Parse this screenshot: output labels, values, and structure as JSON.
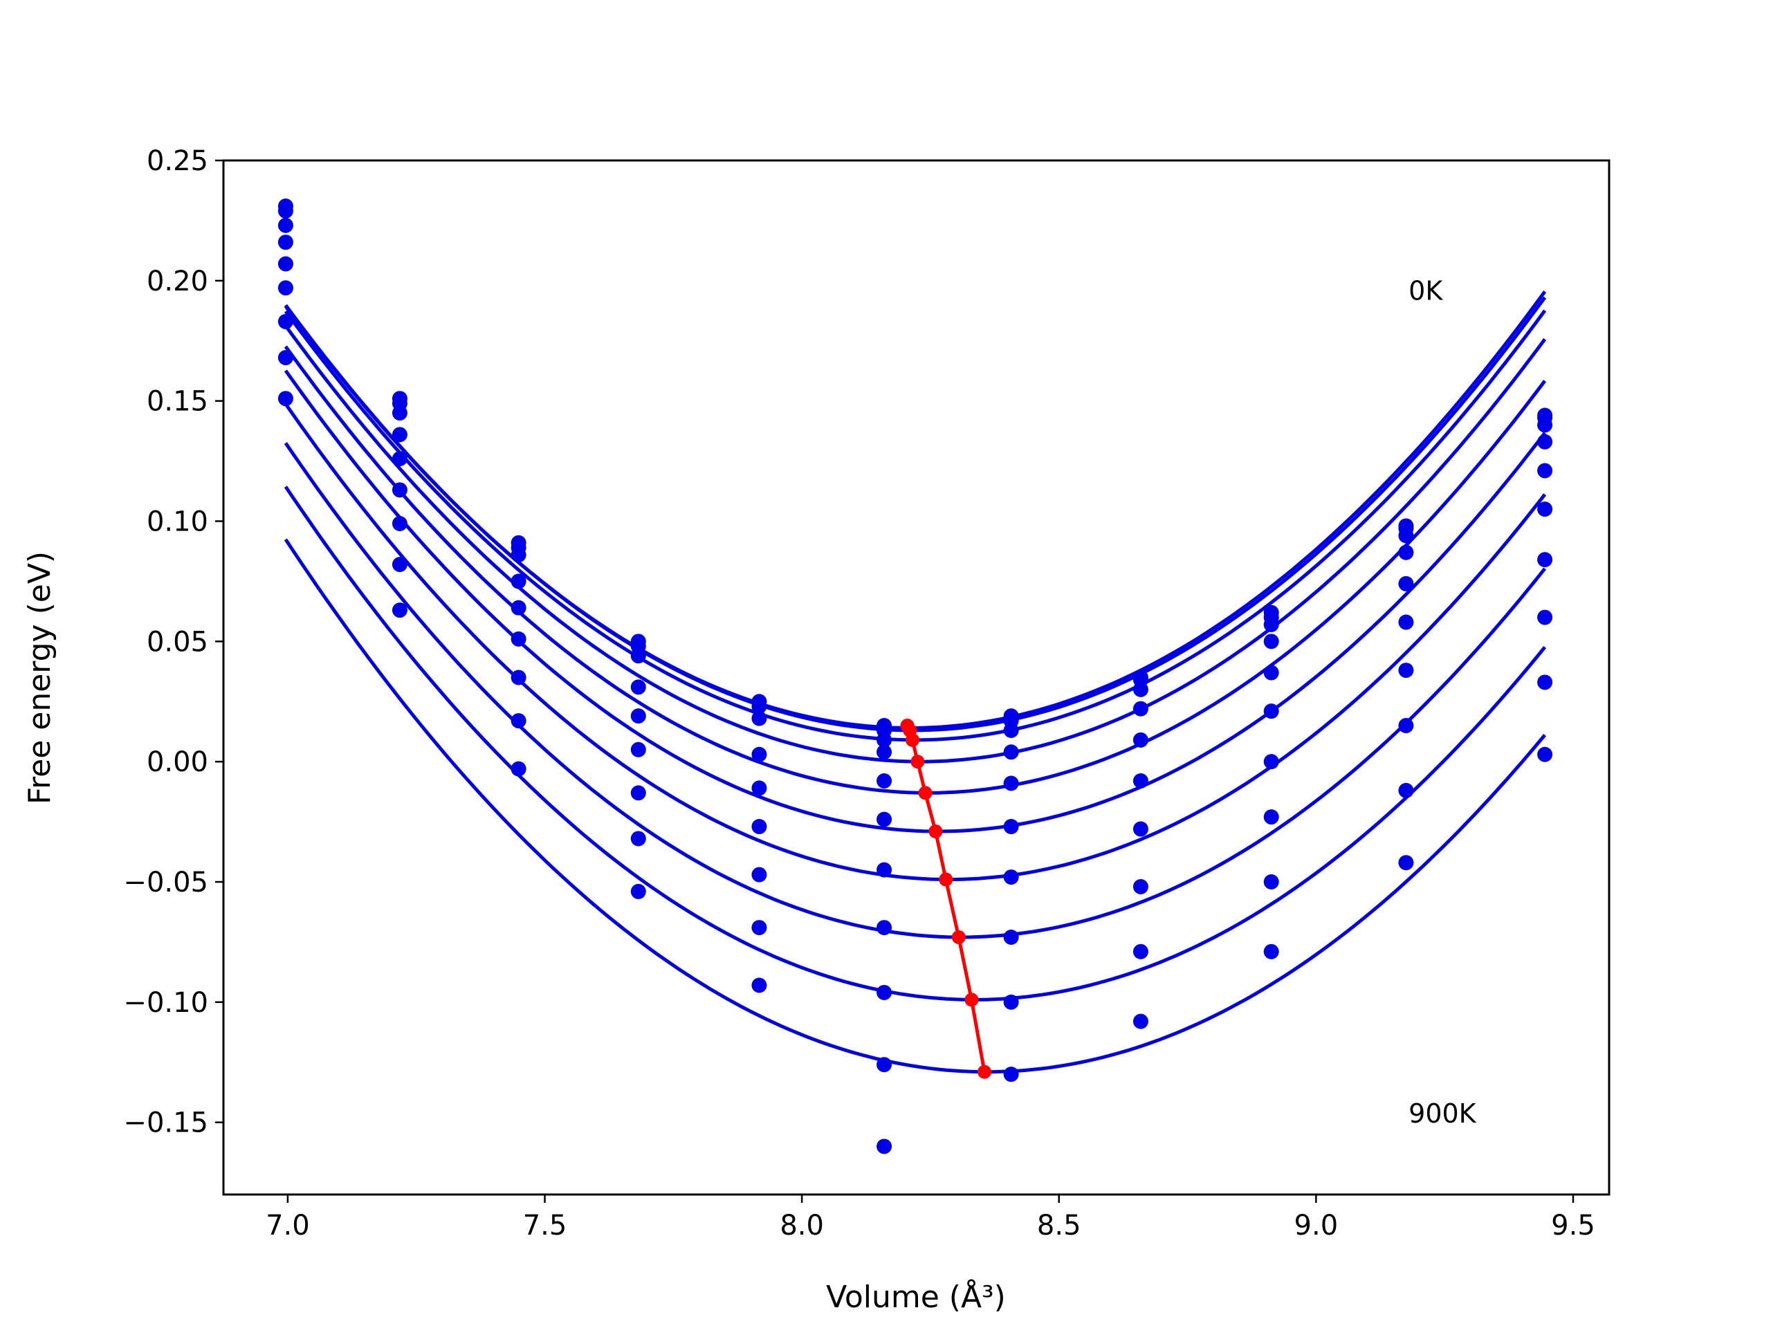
{
  "chart_data": {
    "type": "scatter",
    "xlabel": "Volume (Å³)",
    "ylabel": "Free energy (eV)",
    "xlim": [
      6.875,
      9.57
    ],
    "ylim": [
      -0.18,
      0.25
    ],
    "grid": false,
    "xticks": [
      "7.0",
      "7.5",
      "8.0",
      "8.5",
      "9.0",
      "9.5"
    ],
    "xtick_values": [
      7.0,
      7.5,
      8.0,
      8.5,
      9.0,
      9.5
    ],
    "yticks": [
      "0.25",
      "0.20",
      "0.15",
      "0.10",
      "0.05",
      "0.00",
      "−0.05",
      "−0.10",
      "−0.15"
    ],
    "ytick_values": [
      0.25,
      0.2,
      0.15,
      0.1,
      0.05,
      0.0,
      -0.05,
      -0.1,
      -0.15
    ],
    "annotations": [
      {
        "text": "0K",
        "x": 9.18,
        "y": 0.196
      },
      {
        "text": "900K",
        "x": 9.18,
        "y": -0.146
      }
    ],
    "series_color": "#0000e6",
    "minimum_color": "#ff0000",
    "volumes": [
      6.996,
      7.218,
      7.449,
      7.682,
      7.917,
      8.16,
      8.407,
      8.659,
      8.913,
      9.175,
      9.445
    ],
    "series": [
      {
        "points": [
          0.231,
          0.151,
          0.091,
          0.05,
          0.025,
          0.015,
          0.019,
          0.035,
          0.062,
          0.098,
          0.144
        ],
        "fit": {
          "a": 0.119,
          "vmin": 8.21,
          "emin": 0.014
        }
      },
      {
        "points": [
          0.229,
          0.149,
          0.089,
          0.048,
          0.023,
          0.013,
          0.017,
          0.034,
          0.06,
          0.097,
          0.143
        ],
        "fit": {
          "a": 0.119,
          "vmin": 8.215,
          "emin": 0.013
        }
      },
      {
        "points": [
          0.223,
          0.145,
          0.086,
          0.044,
          0.018,
          0.009,
          0.013,
          0.03,
          0.057,
          0.094,
          0.14
        ],
        "fit": {
          "a": 0.119,
          "vmin": 8.22,
          "emin": 0.009
        }
      },
      {
        "points": [
          0.216,
          0.136,
          0.075,
          0.031,
          0.003,
          0.004,
          0.004,
          0.022,
          0.05,
          0.087,
          0.133
        ],
        "fit": {
          "a": 0.119,
          "vmin": 8.23,
          "emin": 0.0
        }
      },
      {
        "points": [
          0.207,
          0.126,
          0.064,
          0.019,
          -0.011,
          -0.008,
          -0.009,
          0.009,
          0.037,
          0.074,
          0.121
        ],
        "fit": {
          "a": 0.119,
          "vmin": 8.245,
          "emin": -0.013
        }
      },
      {
        "points": [
          0.197,
          0.113,
          0.051,
          0.005,
          -0.027,
          -0.024,
          -0.027,
          -0.008,
          0.021,
          0.058,
          0.105
        ],
        "fit": {
          "a": 0.119,
          "vmin": 8.265,
          "emin": -0.029
        }
      },
      {
        "points": [
          0.183,
          0.099,
          0.035,
          -0.013,
          -0.047,
          -0.045,
          -0.048,
          -0.028,
          0.0,
          0.038,
          0.084
        ],
        "fit": {
          "a": 0.119,
          "vmin": 8.285,
          "emin": -0.049
        }
      },
      {
        "points": [
          0.168,
          0.082,
          0.017,
          -0.032,
          -0.069,
          -0.069,
          -0.073,
          -0.052,
          -0.023,
          0.015,
          0.06
        ],
        "fit": {
          "a": 0.119,
          "vmin": 8.31,
          "emin": -0.073
        }
      },
      {
        "points": [
          0.151,
          0.063,
          -0.003,
          -0.054,
          -0.093,
          -0.096,
          -0.1,
          -0.079,
          -0.05,
          -0.012,
          0.033
        ],
        "fit": {
          "a": 0.119,
          "vmin": 8.335,
          "emin": -0.099
        }
      },
      {
        "points": [
          null,
          null,
          null,
          null,
          null,
          -0.126,
          -0.13,
          -0.108,
          -0.079,
          -0.042,
          0.003
        ],
        "fit": {
          "a": 0.119,
          "vmin": 8.36,
          "emin": -0.129
        }
      },
      {
        "points": [
          null,
          null,
          null,
          null,
          null,
          -0.16,
          null,
          null,
          null,
          null,
          null
        ],
        "fit": null
      }
    ],
    "minima_line": {
      "x": [
        8.205,
        8.21,
        8.215,
        8.225,
        8.24,
        8.26,
        8.28,
        8.305,
        8.33,
        8.355
      ],
      "y": [
        0.015,
        0.013,
        0.009,
        0.0,
        -0.013,
        -0.029,
        -0.049,
        -0.073,
        -0.099,
        -0.129
      ]
    }
  }
}
